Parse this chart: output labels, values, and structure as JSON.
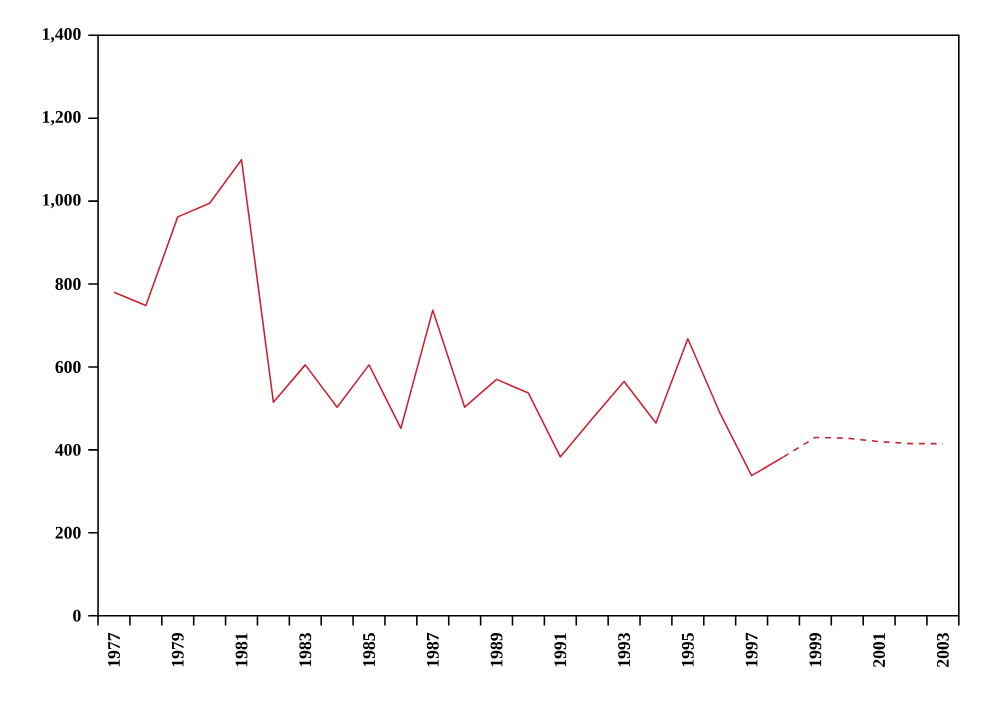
{
  "chart_data": {
    "type": "line",
    "categories": [
      "1977",
      null,
      "1979",
      null,
      "1981",
      null,
      "1983",
      null,
      "1985",
      null,
      "1987",
      null,
      "1989",
      null,
      "1991",
      null,
      "1993",
      null,
      "1995",
      null,
      "1997",
      null,
      "1999",
      null,
      "2001",
      null,
      "2003"
    ],
    "series": [
      {
        "color": "#cc2233",
        "line_style": "solid",
        "values": [
          780,
          748,
          962,
          995,
          1100,
          515,
          605,
          503,
          605,
          452,
          737,
          503,
          570,
          537,
          383,
          475,
          565,
          465,
          668,
          490,
          338,
          383,
          null,
          null,
          null,
          null,
          null
        ]
      },
      {
        "color": "#cc2233",
        "line_style": "dashed",
        "values": [
          null,
          null,
          null,
          null,
          null,
          null,
          null,
          null,
          null,
          null,
          null,
          null,
          null,
          null,
          null,
          null,
          null,
          null,
          null,
          null,
          null,
          383,
          430,
          428,
          420,
          415,
          415
        ]
      }
    ],
    "ylim": [
      0,
      1400
    ],
    "yticks": [
      0,
      200,
      400,
      600,
      800,
      {
        "value": 1000,
        "label": "1,000"
      },
      {
        "value": 1200,
        "label": "1,200"
      },
      {
        "value": 1400,
        "label": "1,400"
      }
    ],
    "grid": false,
    "legend": false,
    "marker": "none"
  }
}
